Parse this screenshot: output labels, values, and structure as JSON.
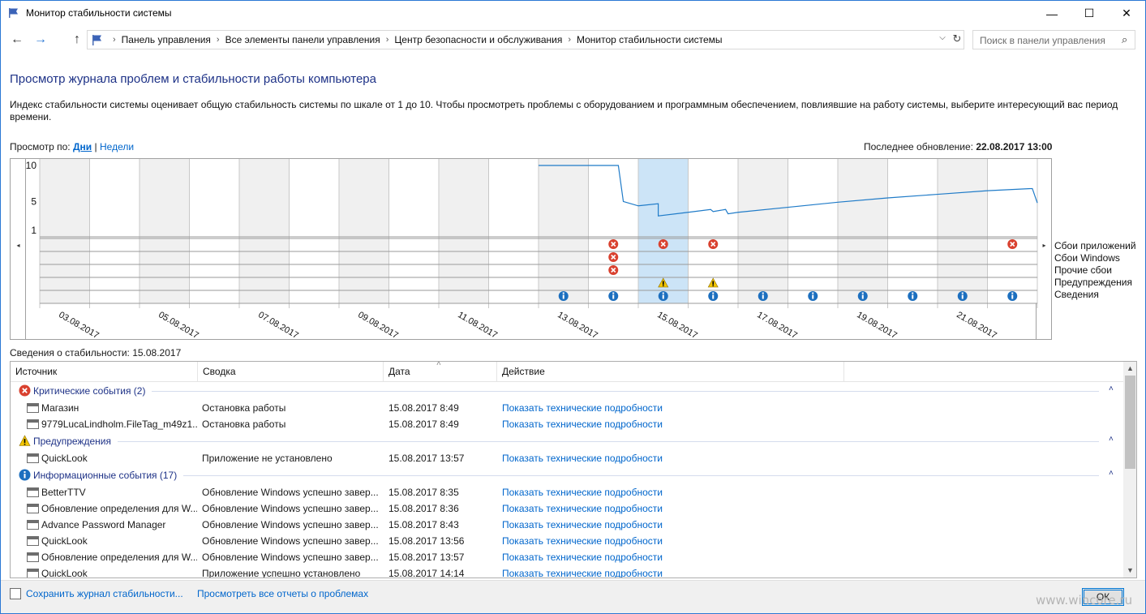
{
  "window": {
    "title": "Монитор стабильности системы",
    "minimize": "—",
    "maximize": "☐",
    "close": "✕"
  },
  "nav": {
    "back": "←",
    "forward": "→",
    "up": "↑",
    "breadcrumbs": [
      "Панель управления",
      "Все элементы панели управления",
      "Центр безопасности и обслуживания",
      "Монитор стабильности системы"
    ],
    "separator": "›",
    "dropdown": "⌵",
    "refresh": "↻",
    "search_placeholder": "Поиск в панели управления",
    "search_icon": "⌕"
  },
  "main": {
    "heading": "Просмотр журнала проблем и стабильности работы компьютера",
    "description": "Индекс стабильности системы оценивает общую стабильность системы по шкале от 1 до 10. Чтобы просмотреть проблемы с оборудованием и программным обеспечением, повлиявшие на работу системы, выберите интересующий вас период времени.",
    "view_by_label": "Просмотр по:",
    "view_days": "Дни",
    "view_sep": "|",
    "view_weeks": "Недели",
    "last_update_label": "Последнее обновление:",
    "last_update_value": "22.08.2017 13:00"
  },
  "chart_data": {
    "type": "line",
    "title": "",
    "ylabel": "",
    "xlabel": "",
    "ylim": [
      1,
      10
    ],
    "y_ticks": [
      "10",
      "5",
      "1"
    ],
    "scroll_left": "◂",
    "scroll_right": "▸",
    "days_shown": [
      "03.08.2017",
      "04.08.2017",
      "05.08.2017",
      "06.08.2017",
      "07.08.2017",
      "08.08.2017",
      "09.08.2017",
      "10.08.2017",
      "11.08.2017",
      "12.08.2017",
      "13.08.2017",
      "14.08.2017",
      "15.08.2017",
      "16.08.2017",
      "17.08.2017",
      "18.08.2017",
      "19.08.2017",
      "20.08.2017",
      "21.08.2017",
      "22.08.2017"
    ],
    "x_tick_labels": [
      "03.08.2017",
      "05.08.2017",
      "07.08.2017",
      "09.08.2017",
      "11.08.2017",
      "13.08.2017",
      "15.08.2017",
      "17.08.2017",
      "19.08.2017",
      "21.08.2017"
    ],
    "selected_day": "15.08.2017",
    "stability_index": {
      "x_day_fraction": [
        10.0,
        11.0,
        11.6,
        11.7,
        12.0,
        12.4,
        12.4,
        13.0,
        13.45,
        13.5,
        13.75,
        13.8,
        14.0,
        15.0,
        16.0,
        17.0,
        18.0,
        19.0,
        19.9,
        20.0
      ],
      "values": [
        10.0,
        10.0,
        10.0,
        5.0,
        4.4,
        4.7,
        3.0,
        3.5,
        3.9,
        3.6,
        3.9,
        3.3,
        3.5,
        4.2,
        4.9,
        5.5,
        6.0,
        6.5,
        6.8,
        4.8
      ]
    },
    "rows": [
      {
        "label": "Сбои приложений",
        "events": [
          {
            "day": "14.08.2017",
            "kind": "error"
          },
          {
            "day": "15.08.2017",
            "kind": "error"
          },
          {
            "day": "16.08.2017",
            "kind": "error"
          },
          {
            "day": "22.08.2017",
            "kind": "error"
          }
        ]
      },
      {
        "label": "Сбои Windows",
        "events": [
          {
            "day": "14.08.2017",
            "kind": "error"
          }
        ]
      },
      {
        "label": "Прочие сбои",
        "events": [
          {
            "day": "14.08.2017",
            "kind": "error"
          }
        ]
      },
      {
        "label": "Предупреждения",
        "events": [
          {
            "day": "15.08.2017",
            "kind": "warning"
          },
          {
            "day": "16.08.2017",
            "kind": "warning"
          }
        ]
      },
      {
        "label": "Сведения",
        "events": [
          {
            "day": "13.08.2017",
            "kind": "info"
          },
          {
            "day": "14.08.2017",
            "kind": "info"
          },
          {
            "day": "15.08.2017",
            "kind": "info"
          },
          {
            "day": "16.08.2017",
            "kind": "info"
          },
          {
            "day": "17.08.2017",
            "kind": "info"
          },
          {
            "day": "18.08.2017",
            "kind": "info"
          },
          {
            "day": "19.08.2017",
            "kind": "info"
          },
          {
            "day": "20.08.2017",
            "kind": "info"
          },
          {
            "day": "21.08.2017",
            "kind": "info"
          },
          {
            "day": "22.08.2017",
            "kind": "info"
          }
        ]
      }
    ],
    "colors": {
      "line": "#1f7bc8",
      "selected": "#cce4f7",
      "shaded": "#f0f0f0",
      "error": "#d9412f",
      "warning": "#f2c500",
      "info": "#1c6fbf"
    }
  },
  "details": {
    "title": "Сведения о стабильности: 15.08.2017",
    "columns": [
      "Источник",
      "Сводка",
      "Дата",
      "Действие"
    ],
    "sort_indicator": "˄",
    "collapse_icon": "˄",
    "groups": [
      {
        "kind": "error",
        "label": "Критические события (2)",
        "rows": [
          {
            "source": "Магазин",
            "summary": "Остановка работы",
            "date": "15.08.2017 8:49",
            "action": "Показать технические подробности"
          },
          {
            "source": "9779LucaLindholm.FileTag_m49z1...",
            "summary": "Остановка работы",
            "date": "15.08.2017 8:49",
            "action": "Показать технические подробности"
          }
        ]
      },
      {
        "kind": "warning",
        "label": "Предупреждения",
        "rows": [
          {
            "source": "QuickLook",
            "summary": "Приложение не установлено",
            "date": "15.08.2017 13:57",
            "action": "Показать технические подробности"
          }
        ]
      },
      {
        "kind": "info",
        "label": "Информационные события (17)",
        "rows": [
          {
            "source": "BetterTTV",
            "summary": "Обновление Windows успешно завер...",
            "date": "15.08.2017 8:35",
            "action": "Показать технические подробности"
          },
          {
            "source": "Обновление определения для W...",
            "summary": "Обновление Windows успешно завер...",
            "date": "15.08.2017 8:36",
            "action": "Показать технические подробности"
          },
          {
            "source": "Advance Password Manager",
            "summary": "Обновление Windows успешно завер...",
            "date": "15.08.2017 8:43",
            "action": "Показать технические подробности"
          },
          {
            "source": "QuickLook",
            "summary": "Обновление Windows успешно завер...",
            "date": "15.08.2017 13:56",
            "action": "Показать технические подробности"
          },
          {
            "source": "Обновление определения для W...",
            "summary": "Обновление Windows успешно завер...",
            "date": "15.08.2017 13:57",
            "action": "Показать технические подробности"
          },
          {
            "source": "QuickLook",
            "summary": "Приложение успешно установлено",
            "date": "15.08.2017 14:14",
            "action": "Показать технические подробности"
          }
        ]
      }
    ],
    "scroll_up": "▲",
    "scroll_down": "▼"
  },
  "footer": {
    "save_link": "Сохранить журнал стабильности...",
    "reports_link": "Просмотреть все отчеты о проблемах",
    "ok": "ОК",
    "watermark": "www.wincore.ru"
  }
}
